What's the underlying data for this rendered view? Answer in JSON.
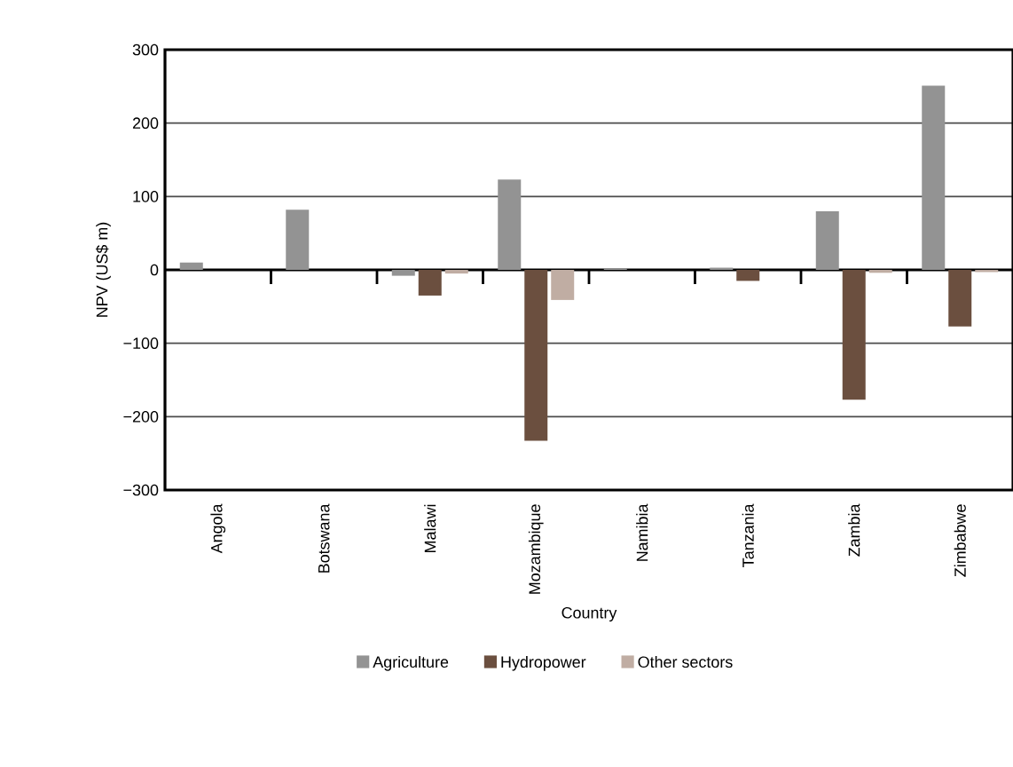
{
  "chart_data": {
    "type": "bar",
    "xlabel": "Country",
    "ylabel": "NPV (US$ m)",
    "categories": [
      "Angola",
      "Botswana",
      "Malawi",
      "Mozambique",
      "Namibia",
      "Tanzania",
      "Zambia",
      "Zimbabwe"
    ],
    "series": [
      {
        "name": "Agriculture",
        "color": "#939393",
        "values": [
          10,
          82,
          -8,
          123,
          2,
          3,
          80,
          251
        ]
      },
      {
        "name": "Hydropower",
        "color": "#6b4f3f",
        "values": [
          0,
          0,
          -35,
          -233,
          0,
          -15,
          -177,
          -77
        ]
      },
      {
        "name": "Other sectors",
        "color": "#c0ada3",
        "values": [
          0,
          0,
          -5,
          -41,
          0,
          0,
          -4,
          -3
        ]
      }
    ],
    "ylim": [
      -300,
      300
    ],
    "yticks": [
      {
        "value": -300,
        "label": "−300"
      },
      {
        "value": -200,
        "label": "−200"
      },
      {
        "value": -100,
        "label": "−100"
      },
      0,
      100,
      200,
      300
    ],
    "grid": "y",
    "legend": "bottom"
  }
}
